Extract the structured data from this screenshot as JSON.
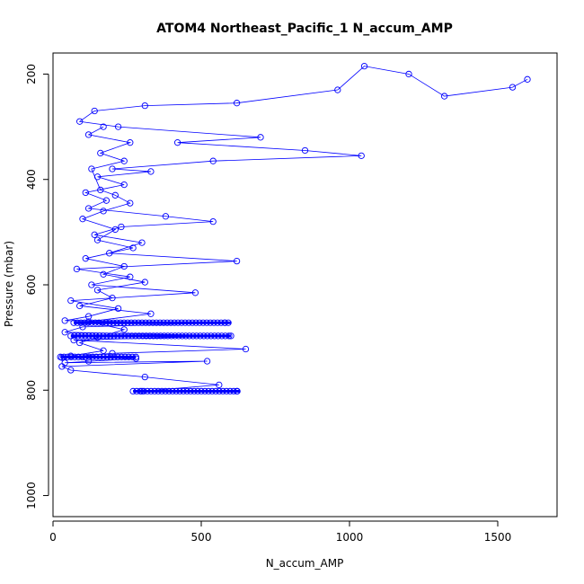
{
  "chart_data": {
    "type": "scatter",
    "title": "ATOM4 Northeast_Pacific_1 N_accum_AMP",
    "xlabel": "N_accum_AMP",
    "ylabel": "Pressure (mbar)",
    "xlim": [
      0,
      1700
    ],
    "ylim": [
      1040,
      160
    ],
    "y_reversed": true,
    "x_ticks": [
      0,
      500,
      1000,
      1500
    ],
    "y_ticks": [
      200,
      400,
      600,
      800,
      1000
    ],
    "grid": false,
    "connected": true,
    "marker": "open-circle",
    "color": "#0000ff",
    "series": [
      {
        "values": [
          [
            1600,
            210
          ],
          [
            1550,
            225
          ],
          [
            1320,
            242
          ],
          [
            1200,
            200
          ],
          [
            1050,
            185
          ],
          [
            960,
            230
          ],
          [
            620,
            255
          ],
          [
            310,
            260
          ],
          [
            140,
            270
          ],
          [
            90,
            290
          ],
          [
            220,
            300
          ],
          [
            700,
            320
          ],
          [
            420,
            330
          ],
          [
            850,
            345
          ],
          [
            1040,
            355
          ],
          [
            540,
            365
          ],
          [
            200,
            380
          ],
          [
            330,
            385
          ],
          [
            150,
            395
          ],
          [
            240,
            410
          ],
          [
            110,
            425
          ],
          [
            180,
            440
          ],
          [
            120,
            455
          ],
          [
            380,
            470
          ],
          [
            540,
            480
          ],
          [
            230,
            490
          ],
          [
            140,
            505
          ],
          [
            300,
            520
          ],
          [
            190,
            540
          ],
          [
            620,
            555
          ],
          [
            80,
            570
          ],
          [
            260,
            585
          ],
          [
            130,
            600
          ],
          [
            480,
            615
          ],
          [
            60,
            630
          ],
          [
            220,
            645
          ],
          [
            120,
            660
          ],
          [
            40,
            668
          ],
          [
            580,
            672
          ],
          [
            100,
            680
          ],
          [
            40,
            690
          ],
          [
            600,
            697
          ],
          [
            70,
            705
          ],
          [
            650,
            722
          ],
          [
            200,
            730
          ],
          [
            30,
            738
          ],
          [
            280,
            740
          ],
          [
            40,
            748
          ],
          [
            520,
            745
          ],
          [
            30,
            755
          ],
          [
            60,
            762
          ],
          [
            310,
            775
          ],
          [
            560,
            790
          ],
          [
            300,
            802
          ],
          [
            620,
            802
          ]
        ]
      },
      {
        "values": [
          [
            170,
            300
          ],
          [
            120,
            315
          ],
          [
            260,
            330
          ],
          [
            160,
            350
          ],
          [
            240,
            365
          ],
          [
            130,
            380
          ],
          [
            160,
            420
          ],
          [
            210,
            430
          ],
          [
            260,
            445
          ],
          [
            170,
            460
          ],
          [
            100,
            475
          ],
          [
            210,
            495
          ],
          [
            150,
            515
          ],
          [
            270,
            530
          ],
          [
            110,
            550
          ],
          [
            240,
            565
          ],
          [
            170,
            580
          ],
          [
            310,
            595
          ],
          [
            150,
            610
          ],
          [
            200,
            625
          ],
          [
            90,
            640
          ],
          [
            330,
            655
          ],
          [
            120,
            670
          ],
          [
            240,
            685
          ],
          [
            150,
            700
          ],
          [
            90,
            710
          ],
          [
            170,
            725
          ],
          [
            60,
            735
          ],
          [
            120,
            745
          ]
        ]
      }
    ],
    "bands": [
      {
        "y": 672,
        "x_range": [
          70,
          600
        ]
      },
      {
        "y": 697,
        "x_range": [
          60,
          600
        ]
      },
      {
        "y": 737,
        "x_range": [
          25,
          280
        ]
      },
      {
        "y": 802,
        "x_range": [
          270,
          630
        ]
      }
    ]
  }
}
